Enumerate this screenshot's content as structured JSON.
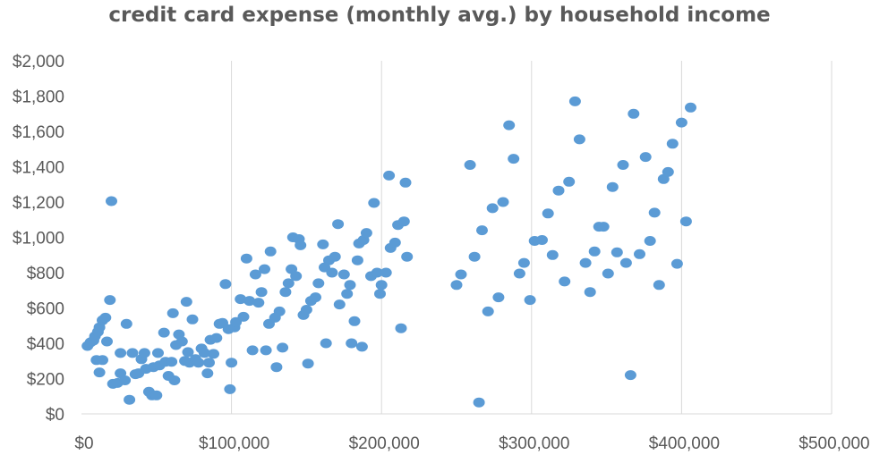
{
  "chart_data": {
    "type": "scatter",
    "title": "credit card expense (monthly avg.) by household income",
    "xlabel": "",
    "ylabel": "",
    "xlim": [
      0,
      500000
    ],
    "ylim": [
      0,
      2000
    ],
    "x_ticks": [
      0,
      100000,
      200000,
      300000,
      400000,
      500000
    ],
    "x_tick_labels": [
      "$0",
      "$100,000",
      "$200,000",
      "$300,000",
      "$400,000",
      "$500,000"
    ],
    "y_ticks": [
      0,
      200,
      400,
      600,
      800,
      1000,
      1200,
      1400,
      1600,
      1800,
      2000
    ],
    "y_tick_labels": [
      "$0",
      "$200",
      "$400",
      "$600",
      "$800",
      "$1,000",
      "$1,200",
      "$1,400",
      "$1,600",
      "$1,800",
      "$2,000"
    ],
    "grid": {
      "vertical": true,
      "horizontal": false
    },
    "legend": "none",
    "color": "#5b9bd5",
    "series": [
      {
        "points": [
          [
            4000,
            385
          ],
          [
            6000,
            405
          ],
          [
            8000,
            415
          ],
          [
            9000,
            440
          ],
          [
            11000,
            465
          ],
          [
            12000,
            490
          ],
          [
            14000,
            530
          ],
          [
            16000,
            545
          ],
          [
            10000,
            305
          ],
          [
            12000,
            235
          ],
          [
            14000,
            305
          ],
          [
            17000,
            410
          ],
          [
            19000,
            645
          ],
          [
            20000,
            1205
          ],
          [
            21000,
            170
          ],
          [
            24000,
            175
          ],
          [
            26000,
            230
          ],
          [
            26000,
            345
          ],
          [
            29000,
            190
          ],
          [
            30000,
            510
          ],
          [
            32000,
            80
          ],
          [
            34000,
            345
          ],
          [
            36000,
            225
          ],
          [
            38000,
            230
          ],
          [
            40000,
            310
          ],
          [
            42000,
            345
          ],
          [
            43000,
            255
          ],
          [
            45000,
            125
          ],
          [
            47000,
            105
          ],
          [
            48000,
            265
          ],
          [
            50000,
            105
          ],
          [
            51000,
            345
          ],
          [
            52000,
            275
          ],
          [
            55000,
            460
          ],
          [
            56000,
            295
          ],
          [
            58000,
            215
          ],
          [
            60000,
            295
          ],
          [
            61000,
            570
          ],
          [
            62000,
            190
          ],
          [
            63000,
            390
          ],
          [
            65000,
            450
          ],
          [
            67000,
            410
          ],
          [
            69000,
            300
          ],
          [
            70000,
            635
          ],
          [
            71000,
            350
          ],
          [
            72000,
            290
          ],
          [
            74000,
            535
          ],
          [
            76000,
            310
          ],
          [
            78000,
            290
          ],
          [
            80000,
            370
          ],
          [
            82000,
            345
          ],
          [
            84000,
            230
          ],
          [
            85000,
            290
          ],
          [
            86000,
            420
          ],
          [
            88000,
            340
          ],
          [
            90000,
            430
          ],
          [
            92000,
            510
          ],
          [
            94000,
            515
          ],
          [
            96000,
            735
          ],
          [
            98000,
            480
          ],
          [
            99000,
            140
          ],
          [
            100000,
            290
          ],
          [
            102000,
            490
          ],
          [
            103000,
            520
          ],
          [
            106000,
            650
          ],
          [
            108000,
            550
          ],
          [
            110000,
            880
          ],
          [
            112000,
            640
          ],
          [
            114000,
            360
          ],
          [
            116000,
            790
          ],
          [
            118000,
            630
          ],
          [
            120000,
            690
          ],
          [
            122000,
            820
          ],
          [
            123000,
            360
          ],
          [
            125000,
            510
          ],
          [
            126000,
            920
          ],
          [
            129000,
            545
          ],
          [
            130000,
            265
          ],
          [
            132000,
            580
          ],
          [
            134000,
            375
          ],
          [
            136000,
            690
          ],
          [
            138000,
            740
          ],
          [
            140000,
            820
          ],
          [
            141000,
            1000
          ],
          [
            143000,
            780
          ],
          [
            145000,
            990
          ],
          [
            146000,
            955
          ],
          [
            148000,
            560
          ],
          [
            150000,
            590
          ],
          [
            151000,
            285
          ],
          [
            153000,
            640
          ],
          [
            156000,
            660
          ],
          [
            158000,
            740
          ],
          [
            161000,
            960
          ],
          [
            162000,
            830
          ],
          [
            163000,
            400
          ],
          [
            165000,
            870
          ],
          [
            167000,
            800
          ],
          [
            169000,
            890
          ],
          [
            171000,
            1075
          ],
          [
            172000,
            620
          ],
          [
            175000,
            790
          ],
          [
            177000,
            680
          ],
          [
            179000,
            730
          ],
          [
            180000,
            400
          ],
          [
            182000,
            525
          ],
          [
            184000,
            870
          ],
          [
            185000,
            965
          ],
          [
            187000,
            380
          ],
          [
            188000,
            985
          ],
          [
            190000,
            1025
          ],
          [
            193000,
            780
          ],
          [
            195000,
            1195
          ],
          [
            197000,
            800
          ],
          [
            199000,
            680
          ],
          [
            200000,
            730
          ],
          [
            203000,
            800
          ],
          [
            205000,
            1350
          ],
          [
            206000,
            940
          ],
          [
            209000,
            970
          ],
          [
            211000,
            1070
          ],
          [
            213000,
            485
          ],
          [
            215000,
            1090
          ],
          [
            216000,
            1310
          ],
          [
            217000,
            890
          ],
          [
            250000,
            730
          ],
          [
            253000,
            790
          ],
          [
            259000,
            1410
          ],
          [
            262000,
            890
          ],
          [
            265000,
            65
          ],
          [
            267000,
            1040
          ],
          [
            271000,
            580
          ],
          [
            274000,
            1165
          ],
          [
            278000,
            660
          ],
          [
            281000,
            1200
          ],
          [
            285000,
            1635
          ],
          [
            288000,
            1445
          ],
          [
            292000,
            795
          ],
          [
            295000,
            855
          ],
          [
            299000,
            645
          ],
          [
            302000,
            980
          ],
          [
            307000,
            985
          ],
          [
            311000,
            1135
          ],
          [
            314000,
            900
          ],
          [
            318000,
            1265
          ],
          [
            322000,
            750
          ],
          [
            325000,
            1315
          ],
          [
            329000,
            1770
          ],
          [
            332000,
            1555
          ],
          [
            336000,
            855
          ],
          [
            339000,
            690
          ],
          [
            342000,
            920
          ],
          [
            345000,
            1060
          ],
          [
            348000,
            1060
          ],
          [
            351000,
            795
          ],
          [
            354000,
            1285
          ],
          [
            357000,
            915
          ],
          [
            361000,
            1410
          ],
          [
            363000,
            855
          ],
          [
            366000,
            220
          ],
          [
            368000,
            1700
          ],
          [
            372000,
            905
          ],
          [
            376000,
            1455
          ],
          [
            379000,
            980
          ],
          [
            382000,
            1140
          ],
          [
            385000,
            730
          ],
          [
            388000,
            1330
          ],
          [
            391000,
            1370
          ],
          [
            394000,
            1530
          ],
          [
            397000,
            850
          ],
          [
            400000,
            1650
          ],
          [
            403000,
            1090
          ],
          [
            406000,
            1735
          ]
        ]
      }
    ]
  }
}
